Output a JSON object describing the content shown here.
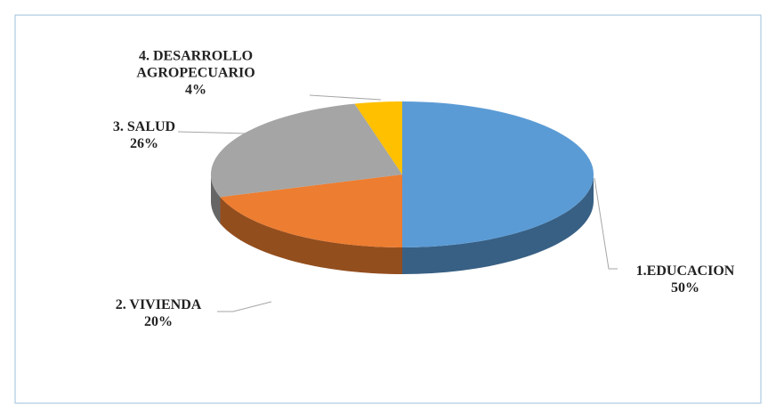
{
  "chart_data": {
    "type": "pie",
    "categories": [
      "1.EDUCACION",
      "2. VIVIENDA",
      "3. SALUD",
      "4. DESARROLLO AGROPECUARIO"
    ],
    "values": [
      50,
      20,
      26,
      4
    ],
    "value_labels": [
      "50%",
      "20%",
      "26%",
      "4%"
    ],
    "colors": [
      "#5b9bd5",
      "#ed7d31",
      "#a5a5a5",
      "#ffc000"
    ]
  }
}
